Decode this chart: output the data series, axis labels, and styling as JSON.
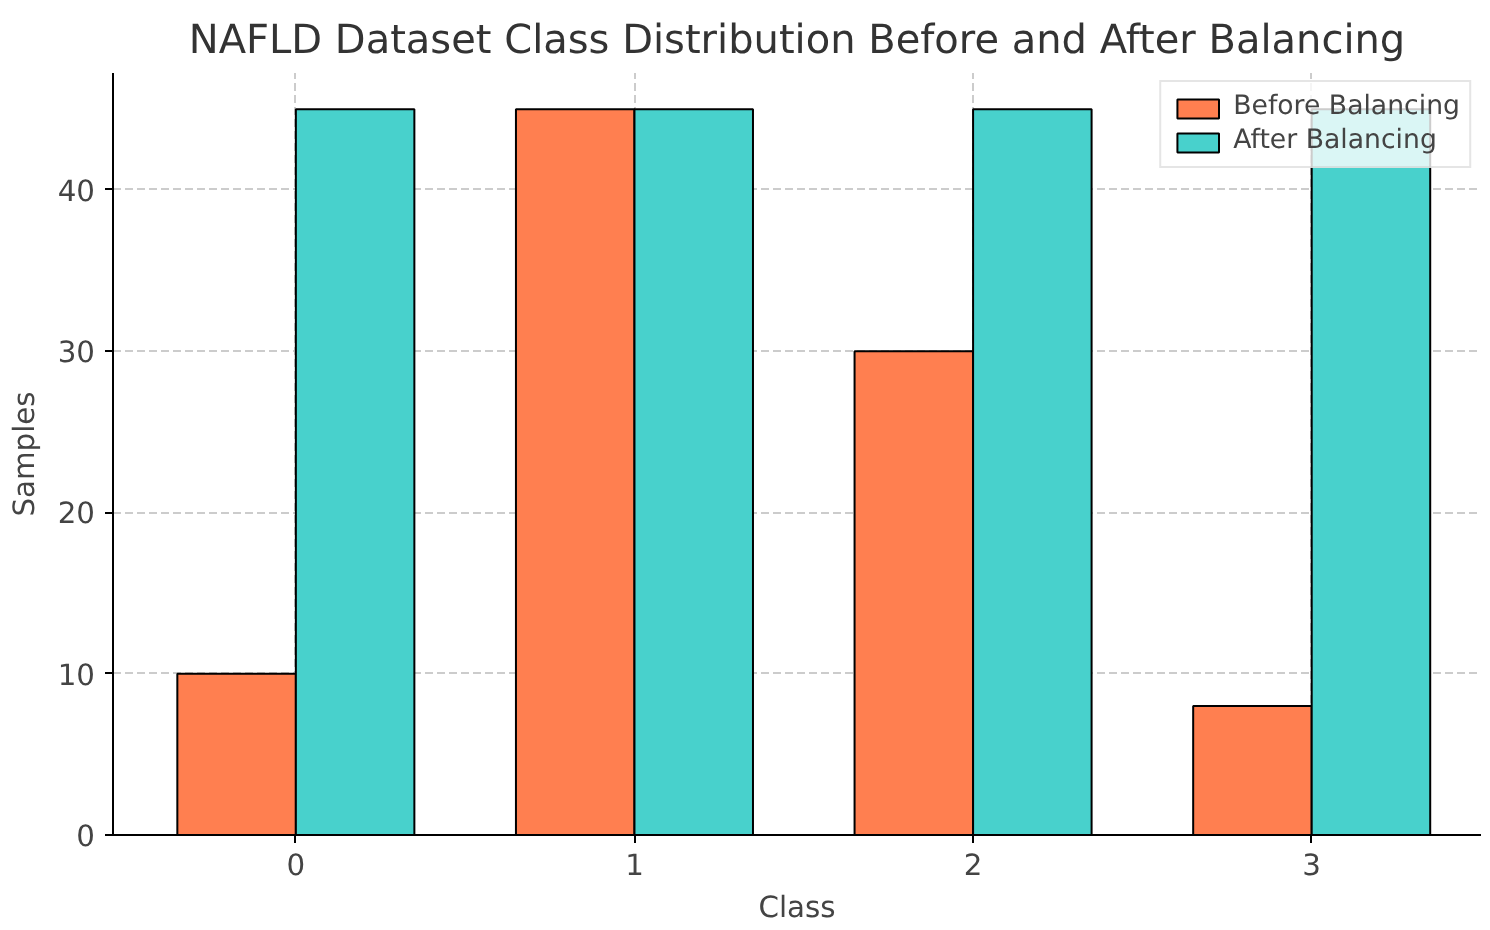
{
  "chart_data": {
    "type": "bar",
    "title": "NAFLD Dataset Class Distribution Before and After Balancing",
    "xlabel": "Class",
    "ylabel": "Samples",
    "categories": [
      "0",
      "1",
      "2",
      "3"
    ],
    "series": [
      {
        "name": "Before Balancing",
        "color": "#ff7f50",
        "values": [
          10,
          45,
          30,
          8
        ]
      },
      {
        "name": "After Balancing",
        "color": "#48d1cc",
        "values": [
          45,
          45,
          45,
          45
        ]
      }
    ],
    "ylim": [
      0,
      47.25
    ],
    "yticks": [
      0,
      10,
      20,
      30,
      40
    ],
    "grid": true,
    "legend": "top right"
  }
}
